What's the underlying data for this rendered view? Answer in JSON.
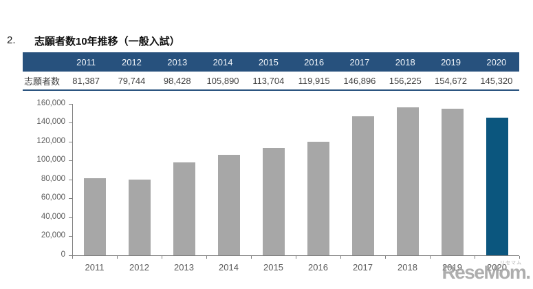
{
  "page": {
    "section_number": "2.",
    "title": "志願者数10年推移（一般入試）"
  },
  "table": {
    "row_label": "志願者数",
    "years": [
      "2011",
      "2012",
      "2013",
      "2014",
      "2015",
      "2016",
      "2017",
      "2018",
      "2019",
      "2020"
    ],
    "values": [
      "81,387",
      "79,744",
      "98,428",
      "105,890",
      "113,704",
      "119,915",
      "146,896",
      "156,225",
      "154,672",
      "145,320"
    ],
    "header_bg": "#27517D",
    "border_color": "#27517D"
  },
  "chart_data": {
    "type": "bar",
    "title": "",
    "xlabel": "",
    "ylabel": "",
    "categories": [
      "2011",
      "2012",
      "2013",
      "2014",
      "2015",
      "2016",
      "2017",
      "2018",
      "2019",
      "2020"
    ],
    "values": [
      81387,
      79744,
      98428,
      105890,
      113704,
      119915,
      146896,
      156225,
      154672,
      145320
    ],
    "ylim": [
      0,
      160000
    ],
    "ytick_step": 20000,
    "grid": false,
    "legend": false,
    "bar_color_default": "#A7A7A7",
    "bar_color_highlight": "#0B567E",
    "highlight_index": 9,
    "axis_color": "#808080"
  },
  "watermark": {
    "text": "ReseMom",
    "suffix": ".",
    "small_text": "リセマム",
    "color": "#9b9b9b"
  }
}
